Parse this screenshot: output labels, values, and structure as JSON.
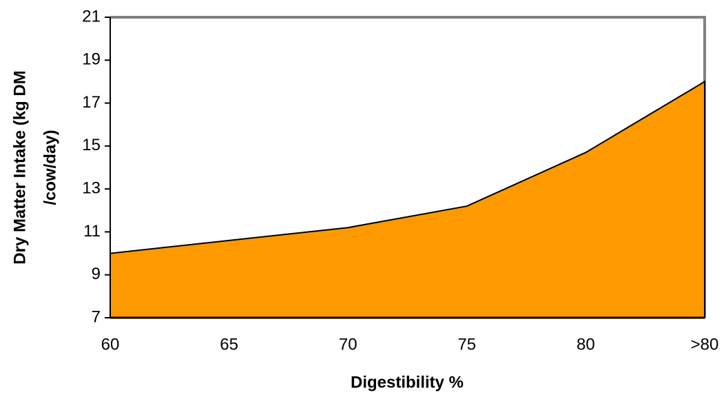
{
  "chart_data": {
    "type": "area",
    "xlabel": "Digestibility %",
    "ylabel": [
      "Dry Matter Intake (kg DM",
      "/cow/day)"
    ],
    "categories": [
      "60",
      "65",
      "70",
      "75",
      "80",
      ">80"
    ],
    "values": [
      10.0,
      10.6,
      11.2,
      12.2,
      14.7,
      18.0
    ],
    "color": "#ff9900",
    "ylim": [
      7,
      21
    ],
    "yticks": [
      7,
      9,
      11,
      13,
      15,
      17,
      19,
      21
    ],
    "grid": false
  }
}
